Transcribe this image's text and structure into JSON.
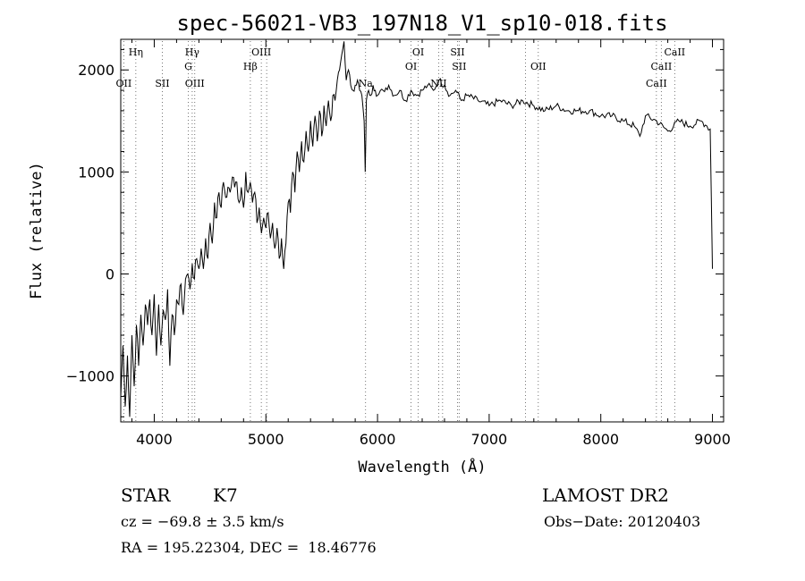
{
  "chart_data": {
    "type": "line",
    "title": "spec-56021-VB3_197N18_V1_sp10-018.fits",
    "xlabel": "Wavelength (Å)",
    "ylabel": "Flux (relative)",
    "xlim": [
      3700,
      9100
    ],
    "ylim": [
      -1450,
      2300
    ],
    "xticks": [
      4000,
      5000,
      6000,
      7000,
      8000,
      9000
    ],
    "yticks": [
      -1000,
      0,
      1000,
      2000
    ],
    "grid": false,
    "series": [
      {
        "color": "#000000",
        "x": [
          3700,
          3720,
          3740,
          3760,
          3780,
          3800,
          3820,
          3840,
          3860,
          3880,
          3900,
          3920,
          3940,
          3960,
          3980,
          4000,
          4020,
          4040,
          4060,
          4080,
          4100,
          4120,
          4140,
          4160,
          4180,
          4200,
          4220,
          4240,
          4260,
          4280,
          4300,
          4320,
          4340,
          4360,
          4380,
          4400,
          4420,
          4440,
          4460,
          4480,
          4500,
          4520,
          4540,
          4560,
          4580,
          4600,
          4620,
          4640,
          4660,
          4680,
          4700,
          4720,
          4740,
          4760,
          4780,
          4800,
          4820,
          4840,
          4860,
          4880,
          4900,
          4920,
          4940,
          4960,
          4980,
          5000,
          5020,
          5040,
          5060,
          5080,
          5100,
          5120,
          5140,
          5160,
          5180,
          5200,
          5220,
          5240,
          5260,
          5280,
          5300,
          5320,
          5340,
          5360,
          5380,
          5400,
          5420,
          5440,
          5460,
          5480,
          5500,
          5520,
          5540,
          5560,
          5580,
          5600,
          5620,
          5640,
          5660,
          5680,
          5700,
          5720,
          5740,
          5760,
          5780,
          5800,
          5820,
          5840,
          5860,
          5880,
          5890,
          5900,
          5920,
          5940,
          5960,
          5980,
          6000,
          6050,
          6100,
          6150,
          6200,
          6250,
          6300,
          6350,
          6400,
          6450,
          6500,
          6550,
          6600,
          6650,
          6700,
          6750,
          6800,
          6900,
          7000,
          7100,
          7200,
          7300,
          7400,
          7500,
          7600,
          7700,
          7800,
          7900,
          8000,
          8100,
          8200,
          8300,
          8350,
          8400,
          8500,
          8600,
          8700,
          8800,
          8900,
          8950,
          8980,
          9000
        ],
        "y": [
          -1200,
          -700,
          -1300,
          -800,
          -1400,
          -600,
          -1100,
          -500,
          -900,
          -400,
          -700,
          -300,
          -500,
          -250,
          -600,
          -200,
          -800,
          -300,
          -700,
          -350,
          -450,
          -150,
          -900,
          -400,
          -600,
          -250,
          -300,
          -100,
          -400,
          -50,
          0,
          -150,
          100,
          -50,
          150,
          50,
          250,
          50,
          350,
          150,
          500,
          300,
          700,
          550,
          800,
          650,
          900,
          750,
          850,
          800,
          950,
          850,
          900,
          700,
          850,
          650,
          1000,
          800,
          900,
          700,
          800,
          500,
          650,
          400,
          550,
          450,
          600,
          350,
          500,
          250,
          450,
          150,
          350,
          50,
          300,
          700,
          600,
          1000,
          800,
          1200,
          1000,
          1300,
          1100,
          1400,
          1200,
          1500,
          1250,
          1550,
          1300,
          1600,
          1350,
          1650,
          1450,
          1700,
          1500,
          1750,
          1700,
          1900,
          2000,
          2150,
          2280,
          1900,
          2000,
          1850,
          1800,
          1850,
          1900,
          1800,
          1750,
          1500,
          1000,
          1700,
          1800,
          1750,
          1850,
          1800,
          1750,
          1800,
          1850,
          1750,
          1800,
          1700,
          1800,
          1750,
          1800,
          1850,
          1800,
          1900,
          1850,
          1750,
          1800,
          1700,
          1750,
          1700,
          1650,
          1700,
          1650,
          1700,
          1650,
          1600,
          1650,
          1600,
          1600,
          1600,
          1550,
          1550,
          1500,
          1450,
          1350,
          1550,
          1500,
          1400,
          1500,
          1450,
          1500,
          1450,
          1420,
          50
        ]
      }
    ],
    "line_labels": [
      {
        "wavelength": 3727,
        "label": "OII",
        "row": 3
      },
      {
        "wavelength": 3835,
        "label": "Hη",
        "row": 1
      },
      {
        "wavelength": 4072,
        "label": "SII",
        "row": 3
      },
      {
        "wavelength": 4305,
        "label": "G",
        "row": 2
      },
      {
        "wavelength": 4340,
        "label": "Hγ",
        "row": 1
      },
      {
        "wavelength": 4363,
        "label": "OIII",
        "row": 3
      },
      {
        "wavelength": 4861,
        "label": "Hβ",
        "row": 2
      },
      {
        "wavelength": 4959,
        "label": "OIII",
        "row": 1
      },
      {
        "wavelength": 5007,
        "label": "",
        "row": 0
      },
      {
        "wavelength": 5893,
        "label": "Na",
        "row": 3
      },
      {
        "wavelength": 6300,
        "label": "OI",
        "row": 2
      },
      {
        "wavelength": 6364,
        "label": "OI",
        "row": 1
      },
      {
        "wavelength": 6548,
        "label": "NII",
        "row": 3
      },
      {
        "wavelength": 6583,
        "label": "",
        "row": 0
      },
      {
        "wavelength": 6716,
        "label": "SII",
        "row": 1
      },
      {
        "wavelength": 6731,
        "label": "SII",
        "row": 2
      },
      {
        "wavelength": 7325,
        "label": "",
        "row": 0
      },
      {
        "wavelength": 7440,
        "label": "OII",
        "row": 2
      },
      {
        "wavelength": 8498,
        "label": "CaII",
        "row": 3
      },
      {
        "wavelength": 8542,
        "label": "CaII",
        "row": 2
      },
      {
        "wavelength": 8662,
        "label": "CaII",
        "row": 1
      }
    ]
  },
  "info": {
    "object_class": "STAR",
    "subclass": "K7",
    "survey": "LAMOST DR2",
    "redshift": "cz = −69.8 ± 3.5 km/s",
    "obs_date": "Obs−Date: 20120403",
    "coords": "RA = 195.22304, DEC =  18.46776"
  }
}
